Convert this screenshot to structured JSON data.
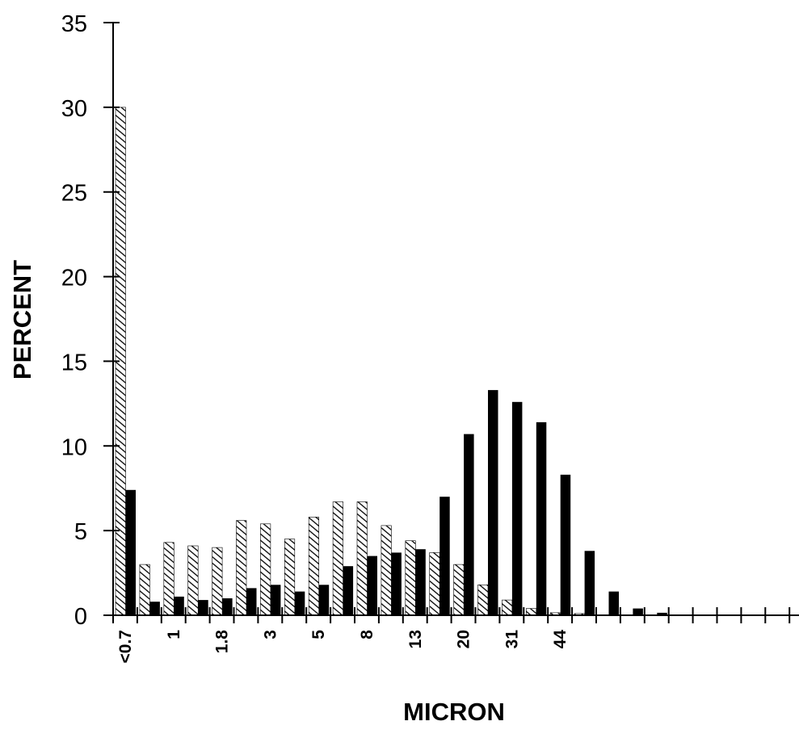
{
  "chart_data": {
    "type": "bar",
    "title": "",
    "xlabel": "MICRON",
    "ylabel": "PERCENT",
    "ylim": [
      0,
      35
    ],
    "yticks": [
      "0",
      "5",
      "10",
      "15",
      "20",
      "25",
      "30",
      "35"
    ],
    "grid": false,
    "legend": "none",
    "categories": [
      "<0.7",
      "",
      "1",
      "",
      "1.8",
      "",
      "3",
      "",
      "5",
      "",
      "8",
      "",
      "13",
      "",
      "20",
      "",
      "31",
      "",
      "44",
      "",
      "",
      "",
      "",
      "",
      "",
      "",
      "",
      "",
      ""
    ],
    "series": [
      {
        "fill": "hatched",
        "values": [
          30.0,
          3.0,
          4.3,
          4.1,
          4.0,
          5.6,
          5.4,
          4.5,
          5.8,
          6.7,
          6.7,
          5.3,
          4.4,
          3.7,
          3.0,
          1.8,
          0.9,
          0.4,
          0.15,
          0.1,
          0,
          0,
          0,
          0,
          0,
          0,
          0,
          0,
          0
        ]
      },
      {
        "fill": "solid",
        "values": [
          7.4,
          0.8,
          1.1,
          0.9,
          1.0,
          1.6,
          1.8,
          1.4,
          1.8,
          2.9,
          3.5,
          3.7,
          3.9,
          7.0,
          10.7,
          13.3,
          12.6,
          11.4,
          8.3,
          3.8,
          1.4,
          0.4,
          0.15,
          0,
          0,
          0,
          0,
          0,
          0
        ]
      }
    ],
    "colors": {
      "axis": "#000000",
      "solid": "#000000",
      "hatch": "#000000",
      "background": "#ffffff"
    }
  }
}
